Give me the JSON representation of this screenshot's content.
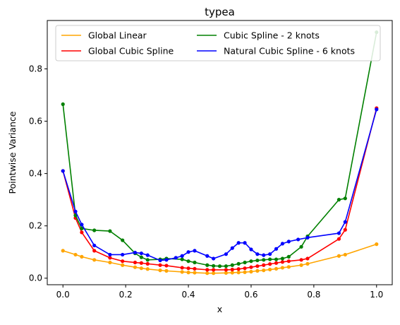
{
  "chart_data": {
    "type": "line",
    "title": "typea",
    "xlabel": "x",
    "ylabel": "Pointwise Variance",
    "xlim": [
      -0.05,
      1.05
    ],
    "ylim": [
      -0.025,
      0.985
    ],
    "xticks": [
      "0.0",
      "0.2",
      "0.4",
      "0.6",
      "0.8",
      "1.0"
    ],
    "yticks": [
      "0.0",
      "0.2",
      "0.4",
      "0.6",
      "0.8"
    ],
    "legend_position": "top",
    "grid": false,
    "series": [
      {
        "name": "Global Linear",
        "color": "#ffa500",
        "x": [
          0.0,
          0.04,
          0.06,
          0.1,
          0.15,
          0.19,
          0.23,
          0.25,
          0.27,
          0.31,
          0.33,
          0.38,
          0.4,
          0.42,
          0.46,
          0.48,
          0.52,
          0.54,
          0.56,
          0.58,
          0.6,
          0.62,
          0.64,
          0.66,
          0.68,
          0.7,
          0.72,
          0.76,
          0.78,
          0.88,
          0.9,
          1.0
        ],
        "y": [
          0.105,
          0.09,
          0.082,
          0.07,
          0.06,
          0.05,
          0.042,
          0.038,
          0.035,
          0.03,
          0.028,
          0.024,
          0.022,
          0.021,
          0.019,
          0.019,
          0.02,
          0.021,
          0.022,
          0.023,
          0.025,
          0.028,
          0.03,
          0.033,
          0.036,
          0.04,
          0.043,
          0.05,
          0.055,
          0.085,
          0.09,
          0.13
        ]
      },
      {
        "name": "Global Cubic Spline",
        "color": "#ff0000",
        "x": [
          0.0,
          0.04,
          0.06,
          0.1,
          0.15,
          0.19,
          0.23,
          0.25,
          0.27,
          0.31,
          0.33,
          0.38,
          0.4,
          0.42,
          0.46,
          0.48,
          0.52,
          0.54,
          0.56,
          0.58,
          0.6,
          0.62,
          0.64,
          0.66,
          0.68,
          0.7,
          0.72,
          0.76,
          0.78,
          0.88,
          0.9,
          1.0
        ],
        "y": [
          0.41,
          0.23,
          0.175,
          0.105,
          0.078,
          0.065,
          0.06,
          0.058,
          0.055,
          0.05,
          0.048,
          0.04,
          0.038,
          0.036,
          0.032,
          0.032,
          0.032,
          0.033,
          0.035,
          0.038,
          0.042,
          0.046,
          0.05,
          0.054,
          0.058,
          0.062,
          0.065,
          0.07,
          0.075,
          0.15,
          0.185,
          0.65
        ]
      },
      {
        "name": "Cubic Spline - 2 knots",
        "color": "#008000",
        "x": [
          0.0,
          0.04,
          0.06,
          0.1,
          0.15,
          0.19,
          0.23,
          0.25,
          0.27,
          0.31,
          0.33,
          0.38,
          0.4,
          0.42,
          0.46,
          0.48,
          0.5,
          0.52,
          0.54,
          0.56,
          0.58,
          0.6,
          0.62,
          0.64,
          0.66,
          0.68,
          0.7,
          0.72,
          0.76,
          0.78,
          0.88,
          0.9,
          1.0
        ],
        "y": [
          0.665,
          0.24,
          0.19,
          0.183,
          0.18,
          0.145,
          0.095,
          0.08,
          0.07,
          0.072,
          0.075,
          0.072,
          0.065,
          0.06,
          0.05,
          0.047,
          0.046,
          0.046,
          0.05,
          0.055,
          0.06,
          0.065,
          0.068,
          0.07,
          0.072,
          0.072,
          0.075,
          0.082,
          0.12,
          0.16,
          0.3,
          0.305,
          0.94
        ]
      },
      {
        "name": "Natural Cubic Spline - 6 knots",
        "color": "#0000ff",
        "x": [
          0.0,
          0.04,
          0.06,
          0.1,
          0.15,
          0.19,
          0.23,
          0.25,
          0.27,
          0.31,
          0.33,
          0.36,
          0.38,
          0.4,
          0.42,
          0.46,
          0.48,
          0.52,
          0.54,
          0.56,
          0.58,
          0.6,
          0.62,
          0.64,
          0.66,
          0.68,
          0.7,
          0.72,
          0.75,
          0.78,
          0.88,
          0.9,
          1.0
        ],
        "y": [
          0.41,
          0.255,
          0.205,
          0.125,
          0.09,
          0.09,
          0.098,
          0.095,
          0.088,
          0.068,
          0.07,
          0.078,
          0.085,
          0.1,
          0.105,
          0.085,
          0.075,
          0.092,
          0.115,
          0.135,
          0.135,
          0.11,
          0.092,
          0.088,
          0.092,
          0.112,
          0.132,
          0.14,
          0.148,
          0.155,
          0.172,
          0.215,
          0.645
        ]
      }
    ]
  }
}
